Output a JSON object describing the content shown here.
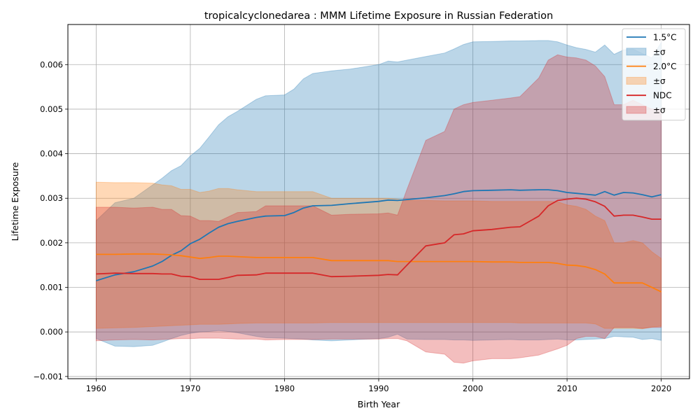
{
  "chart_data": {
    "type": "area",
    "title": "tropicalcyclonedarea : MMM Lifetime Exposure in Russian Federation",
    "xlabel": "Birth Year",
    "ylabel": "Lifetime Exposure",
    "xlim": [
      1957,
      2023
    ],
    "ylim": [
      -0.00105,
      0.0069
    ],
    "x_ticks": [
      1960,
      1970,
      1980,
      1990,
      2000,
      2010,
      2020
    ],
    "y_ticks": [
      -0.001,
      0.0,
      0.001,
      0.002,
      0.003,
      0.004,
      0.005,
      0.006
    ],
    "x_tick_labels": [
      "1960",
      "1970",
      "1980",
      "1990",
      "2000",
      "2010",
      "2020"
    ],
    "y_tick_labels": [
      "−0.001",
      "0.000",
      "0.001",
      "0.002",
      "0.003",
      "0.004",
      "0.005",
      "0.006"
    ],
    "grid": true,
    "legend_position": "top-right",
    "x": [
      1960,
      1962,
      1964,
      1966,
      1967,
      1968,
      1969,
      1970,
      1971,
      1972,
      1973,
      1974,
      1975,
      1977,
      1978,
      1980,
      1981,
      1982,
      1983,
      1985,
      1987,
      1990,
      1991,
      1992,
      1993,
      1995,
      1997,
      1998,
      1999,
      2000,
      2002,
      2004,
      2005,
      2007,
      2008,
      2009,
      2010,
      2011,
      2012,
      2013,
      2014,
      2015,
      2016,
      2017,
      2018,
      2019,
      2020
    ],
    "series": [
      {
        "name": "1.5°C",
        "legend_label": "1.5°C",
        "band_label": "±σ",
        "color": "#1f77b4",
        "band_color": "#1f77b4",
        "mean": [
          0.00115,
          0.00128,
          0.00135,
          0.00148,
          0.00158,
          0.00172,
          0.00182,
          0.00198,
          0.00208,
          0.00222,
          0.00235,
          0.00243,
          0.00248,
          0.00257,
          0.0026,
          0.00261,
          0.00268,
          0.00278,
          0.00283,
          0.00284,
          0.00288,
          0.00293,
          0.00296,
          0.00295,
          0.00297,
          0.00301,
          0.00306,
          0.0031,
          0.00315,
          0.00317,
          0.00318,
          0.00319,
          0.00318,
          0.00319,
          0.00319,
          0.00317,
          0.00313,
          0.00311,
          0.00309,
          0.00307,
          0.00315,
          0.00307,
          0.00313,
          0.00312,
          0.00308,
          0.00303,
          0.00308
        ],
        "upper": [
          0.0025,
          0.0029,
          0.003,
          0.0033,
          0.00345,
          0.00362,
          0.00373,
          0.00395,
          0.00412,
          0.00438,
          0.00465,
          0.00483,
          0.00495,
          0.00522,
          0.0053,
          0.00532,
          0.00545,
          0.00568,
          0.0058,
          0.00586,
          0.0059,
          0.006,
          0.00608,
          0.00606,
          0.0061,
          0.00618,
          0.00626,
          0.00635,
          0.00645,
          0.00651,
          0.00652,
          0.00653,
          0.00653,
          0.00654,
          0.00654,
          0.00651,
          0.00644,
          0.00638,
          0.00634,
          0.00628,
          0.00644,
          0.00623,
          0.00633,
          0.00635,
          0.00625,
          0.00615,
          0.0065
        ],
        "lower": [
          -0.00015,
          -0.00032,
          -0.00033,
          -0.0003,
          -0.00023,
          -0.00015,
          -8e-05,
          -3e-05,
          0.0,
          1e-05,
          3e-05,
          1e-05,
          -2e-05,
          -0.0001,
          -0.00013,
          -0.00014,
          -0.00015,
          -0.00016,
          -0.00018,
          -0.0002,
          -0.00018,
          -0.00015,
          -0.00012,
          -5e-05,
          -0.00016,
          -0.00017,
          -0.00017,
          -0.00018,
          -0.00018,
          -0.00019,
          -0.00018,
          -0.00017,
          -0.00018,
          -0.00018,
          -0.00017,
          -0.00016,
          -0.00018,
          -0.00018,
          -0.00017,
          -0.00016,
          -0.00015,
          -0.0001,
          -0.00011,
          -0.00012,
          -0.00017,
          -0.00015,
          -0.00019
        ]
      },
      {
        "name": "2.0°C",
        "legend_label": "2.0°C",
        "band_label": "±σ",
        "color": "#ff7f0e",
        "band_color": "#ff7f0e",
        "mean": [
          0.00174,
          0.00174,
          0.00175,
          0.00175,
          0.00174,
          0.00173,
          0.00171,
          0.00168,
          0.00165,
          0.00167,
          0.0017,
          0.0017,
          0.00169,
          0.00167,
          0.00167,
          0.00167,
          0.00167,
          0.00167,
          0.00167,
          0.0016,
          0.0016,
          0.0016,
          0.0016,
          0.00158,
          0.00158,
          0.00158,
          0.00158,
          0.00158,
          0.00158,
          0.00158,
          0.00157,
          0.00157,
          0.00156,
          0.00156,
          0.00156,
          0.00154,
          0.0015,
          0.00149,
          0.00146,
          0.0014,
          0.0013,
          0.0011,
          0.0011,
          0.0011,
          0.0011,
          0.001,
          0.0009
        ],
        "upper": [
          0.00336,
          0.00335,
          0.00335,
          0.00334,
          0.0033,
          0.00328,
          0.0032,
          0.0032,
          0.00313,
          0.00316,
          0.00322,
          0.00322,
          0.00319,
          0.00315,
          0.00315,
          0.00315,
          0.00315,
          0.00315,
          0.00315,
          0.003,
          0.003,
          0.003,
          0.003,
          0.00298,
          0.00295,
          0.00295,
          0.00294,
          0.00294,
          0.00294,
          0.00294,
          0.00293,
          0.00293,
          0.00293,
          0.00293,
          0.00293,
          0.00292,
          0.00285,
          0.00282,
          0.00275,
          0.0026,
          0.0025,
          0.002,
          0.002,
          0.00205,
          0.002,
          0.0018,
          0.00165
        ],
        "lower": [
          8e-05,
          9e-05,
          0.0001,
          0.00012,
          0.00013,
          0.00014,
          0.00015,
          0.00016,
          0.00017,
          0.00017,
          0.00017,
          0.00018,
          0.00019,
          0.0002,
          0.0002,
          0.0002,
          0.0002,
          0.0002,
          0.0002,
          0.00021,
          0.00021,
          0.00021,
          0.00021,
          0.00021,
          0.00021,
          0.00021,
          0.00021,
          0.00021,
          0.00021,
          0.00021,
          0.00021,
          0.00021,
          0.0002,
          0.0002,
          0.0002,
          0.0002,
          0.0002,
          0.0002,
          0.0002,
          0.00018,
          8e-05,
          8e-05,
          8e-05,
          8e-05,
          7e-05,
          0.00011,
          0.00013
        ]
      },
      {
        "name": "NDC",
        "legend_label": "NDC",
        "band_label": "±σ",
        "color": "#d62728",
        "band_color": "#d62728",
        "mean": [
          0.0013,
          0.00132,
          0.00131,
          0.00131,
          0.0013,
          0.0013,
          0.00125,
          0.00124,
          0.00118,
          0.00118,
          0.00118,
          0.00122,
          0.00127,
          0.00128,
          0.00132,
          0.00132,
          0.00132,
          0.00132,
          0.00132,
          0.00124,
          0.00125,
          0.00127,
          0.00129,
          0.00128,
          0.0015,
          0.00193,
          0.002,
          0.00218,
          0.0022,
          0.00227,
          0.0023,
          0.00235,
          0.00236,
          0.0026,
          0.00283,
          0.00295,
          0.00298,
          0.003,
          0.00298,
          0.00292,
          0.00282,
          0.0026,
          0.00262,
          0.00262,
          0.00258,
          0.00253,
          0.00253
        ],
        "upper": [
          0.0028,
          0.0028,
          0.00278,
          0.0028,
          0.00275,
          0.00275,
          0.00261,
          0.0026,
          0.0025,
          0.0025,
          0.00248,
          0.00258,
          0.00268,
          0.0027,
          0.00283,
          0.00283,
          0.00283,
          0.00283,
          0.00283,
          0.00262,
          0.00264,
          0.00265,
          0.00267,
          0.00262,
          0.0032,
          0.0043,
          0.0045,
          0.005,
          0.0051,
          0.00515,
          0.0052,
          0.00525,
          0.00528,
          0.0057,
          0.0061,
          0.00622,
          0.00617,
          0.00615,
          0.0061,
          0.00597,
          0.00573,
          0.0051,
          0.0051,
          0.0052,
          0.0051,
          0.005,
          0.005
        ],
        "lower": [
          -0.0002,
          -0.00018,
          -0.00017,
          -0.00018,
          -0.00017,
          -0.00016,
          -0.00015,
          -0.00015,
          -0.00014,
          -0.00014,
          -0.00014,
          -0.00015,
          -0.00016,
          -0.00016,
          -0.00018,
          -0.00017,
          -0.00017,
          -0.00017,
          -0.00017,
          -0.00016,
          -0.00016,
          -0.00016,
          -0.00015,
          -0.00015,
          -0.0002,
          -0.00045,
          -0.0005,
          -0.00068,
          -0.0007,
          -0.00065,
          -0.0006,
          -0.0006,
          -0.00058,
          -0.00052,
          -0.00045,
          -0.00038,
          -0.0003,
          -0.00015,
          -0.0001,
          -0.0001,
          -0.00015,
          0.0001,
          0.0001,
          0.0001,
          8e-05,
          0.0001,
          0.0001
        ]
      }
    ]
  }
}
